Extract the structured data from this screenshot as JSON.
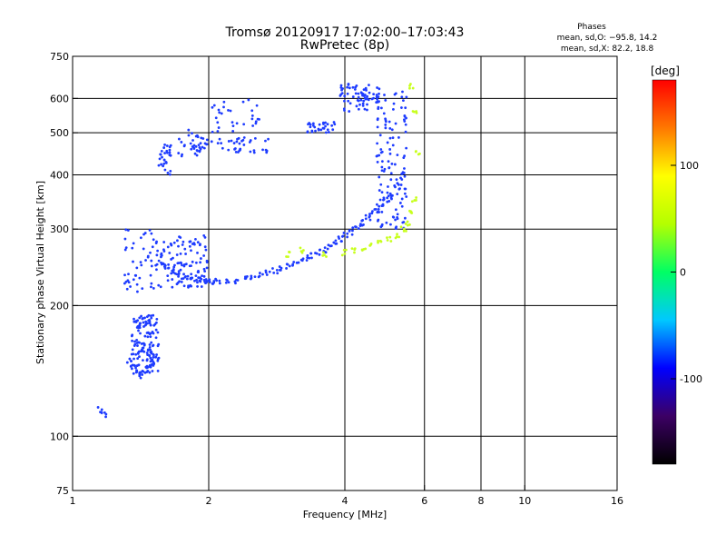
{
  "chart_data": {
    "type": "scatter",
    "title": "Tromsø 20120917 17:02:00–17:03:43",
    "subtitle": "RwPretec (8p)",
    "xlabel": "Frequency [MHz]",
    "ylabel": "Stationary phase Virtual Height [km]",
    "x_scale": "log",
    "y_scale": "log",
    "xlim": [
      1,
      16
    ],
    "ylim": [
      75,
      750
    ],
    "x_ticks": [
      1,
      2,
      4,
      6,
      8,
      10,
      16
    ],
    "y_ticks": [
      75,
      100,
      200,
      300,
      400,
      500,
      600,
      750
    ],
    "x_grid": [
      2,
      4,
      6,
      8,
      10
    ],
    "y_grid": [
      100,
      200,
      300,
      400,
      500,
      600
    ],
    "grid": true,
    "legend": {
      "title": "Phases",
      "lines": [
        "mean, sd,O: −95.8, 14.2",
        "mean, sd,X:  82.2, 18.8"
      ],
      "placement": "top-right"
    },
    "colorbar": {
      "label": "[deg]",
      "range": [
        -180,
        180
      ],
      "ticks": [
        100,
        0,
        -100
      ],
      "colors": [
        "#000000",
        "#3c0064",
        "#0000ff",
        "#00c8ff",
        "#00ff64",
        "#b4ff00",
        "#ffff00",
        "#ff7800",
        "#ff0000"
      ]
    },
    "series": [
      {
        "mode": "O",
        "phase_color": "#1e3cff",
        "segments": [
          {
            "x_range": [
              1.35,
              1.55
            ],
            "y_range": [
              140,
              190
            ],
            "n": 140
          },
          {
            "x_range": [
              1.3,
              1.6
            ],
            "y_range": [
              215,
              300
            ],
            "n": 60
          },
          {
            "x_range": [
              1.6,
              2.0
            ],
            "y_range": [
              220,
              290
            ],
            "n": 90
          },
          {
            "x_range": [
              1.55,
              1.65
            ],
            "y_range": [
              400,
              470
            ],
            "n": 30
          },
          {
            "x_range": [
              1.7,
              1.9
            ],
            "y_range": [
              440,
              510
            ],
            "n": 25
          },
          {
            "x_range": [
              1.9,
              2.8
            ],
            "y_range": [
              450,
              490
            ],
            "n": 50
          },
          {
            "x_range": [
              2.0,
              2.6
            ],
            "y_range": [
              500,
              600
            ],
            "n": 30
          },
          {
            "x_range": [
              3.3,
              3.8
            ],
            "y_range": [
              500,
              530
            ],
            "n": 30
          },
          {
            "x_range": [
              3.9,
              4.8
            ],
            "y_range": [
              560,
              650
            ],
            "n": 70
          },
          {
            "x_range": [
              4.7,
              5.5
            ],
            "y_range": [
              300,
              630
            ],
            "n": 120
          }
        ],
        "x": [
          1.15,
          1.17,
          1.33,
          1.36,
          1.38,
          1.41,
          1.44,
          1.47,
          1.5,
          1.53,
          1.56,
          1.59,
          1.62,
          1.66,
          1.7,
          1.75,
          1.8,
          1.85,
          1.9,
          1.95,
          2.0,
          2.05,
          2.1,
          2.2,
          2.3,
          2.4,
          2.5,
          2.6,
          2.7,
          2.8,
          2.9,
          3.0,
          3.1,
          3.2,
          3.3,
          3.4,
          3.5,
          3.6,
          3.7,
          3.8,
          3.9,
          4.0,
          4.1,
          4.2,
          4.3,
          4.4,
          4.5,
          4.6,
          4.7,
          4.8,
          4.9,
          5.0,
          5.2,
          5.4
        ],
        "y": [
          115,
          112,
          150,
          145,
          140,
          138,
          140,
          143,
          145,
          150,
          260,
          250,
          245,
          240,
          235,
          233,
          232,
          230,
          229,
          228,
          228,
          227,
          227,
          227,
          228,
          230,
          232,
          235,
          238,
          240,
          243,
          246,
          250,
          253,
          257,
          261,
          265,
          269,
          274,
          279,
          285,
          290,
          295,
          300,
          305,
          310,
          318,
          325,
          332,
          340,
          350,
          360,
          380,
          400
        ]
      },
      {
        "mode": "X",
        "phase_color": "#c8ff1e",
        "x": [
          3.0,
          3.2,
          3.6,
          4.0,
          4.2,
          4.4,
          4.6,
          4.8,
          5.0,
          5.2,
          5.4,
          5.5,
          5.6,
          5.7,
          5.8,
          5.7,
          5.6
        ],
        "y": [
          262,
          268,
          262,
          265,
          268,
          270,
          275,
          280,
          285,
          290,
          300,
          310,
          330,
          350,
          450,
          560,
          640
        ]
      }
    ]
  }
}
